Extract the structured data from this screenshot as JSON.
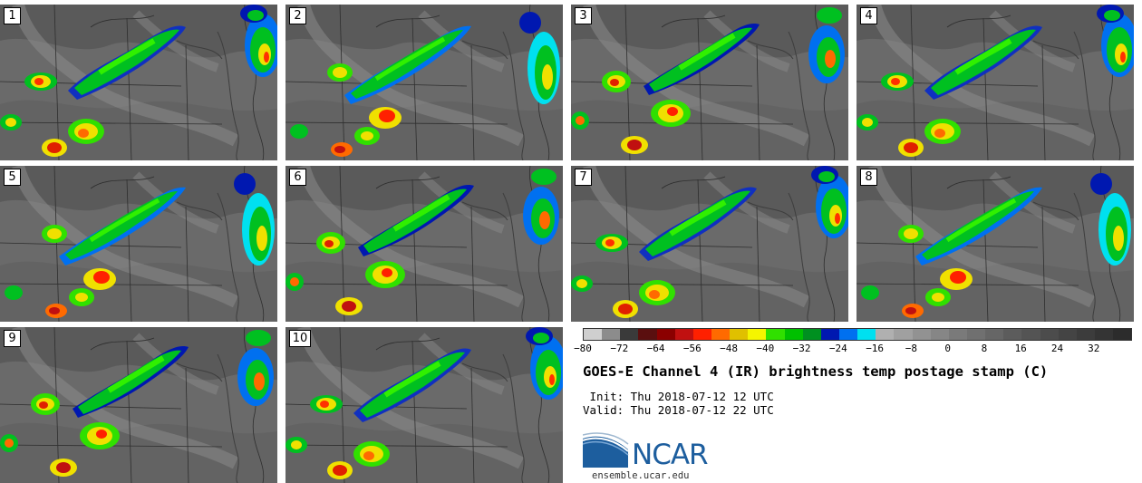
{
  "panels": [
    {
      "label": "1"
    },
    {
      "label": "2"
    },
    {
      "label": "3"
    },
    {
      "label": "4"
    },
    {
      "label": "5"
    },
    {
      "label": "6"
    },
    {
      "label": "7"
    },
    {
      "label": "8"
    },
    {
      "label": "9"
    },
    {
      "label": "10"
    }
  ],
  "colorbar": {
    "min": -80,
    "max": 40,
    "step": 4,
    "tick_labels": [
      "−80",
      "−72",
      "−64",
      "−56",
      "−48",
      "−40",
      "−32",
      "−24",
      "−16",
      "−8",
      "0",
      "8",
      "16",
      "24",
      "32"
    ],
    "colors": [
      "#cfcfcf",
      "#8c8c8c",
      "#3a3a3a",
      "#5a0f0f",
      "#8b0000",
      "#c01010",
      "#ff2000",
      "#ff6a00",
      "#e0c000",
      "#f5f500",
      "#30e000",
      "#00c000",
      "#009020",
      "#0018b0",
      "#0070f0",
      "#00e0f0",
      "#b0b0b0",
      "#a0a0a0",
      "#929292",
      "#868686",
      "#7a7a7a",
      "#707070",
      "#666666",
      "#5c5c5c",
      "#545454",
      "#4c4c4c",
      "#444444",
      "#3c3c3c",
      "#343434",
      "#2c2c2c"
    ]
  },
  "title": "GOES-E Channel 4 (IR) brightness temp postage stamp (C)",
  "init_line": " Init: Thu 2018-07-12 12 UTC",
  "valid_line": "Valid: Thu 2018-07-12 22 UTC",
  "logo_text": "NCAR",
  "logo_site": "ensemble.ucar.edu"
}
